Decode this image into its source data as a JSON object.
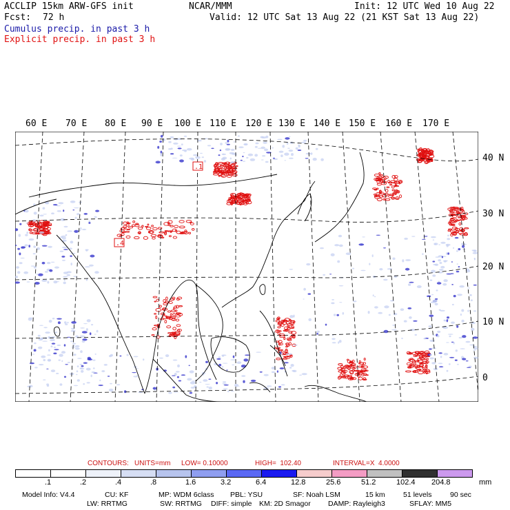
{
  "header": {
    "title": "ACCLIP 15km ARW-GFS init",
    "org": "NCAR/MMM",
    "init": "Init: 12 UTC Wed 10 Aug 22",
    "fcst_label": "Fcst:",
    "fcst_value": "72 h",
    "valid": "Valid: 12 UTC Sat 13 Aug 22 (21 KST Sat 13 Aug 22)"
  },
  "legend": {
    "cumulus": "Cumulus precip. in past 3 h",
    "explicit": "Explicit precip. in past 3 h"
  },
  "map": {
    "lon_labels": [
      "60 E",
      "70 E",
      "80 E",
      "90 E",
      "100 E",
      "110 E",
      "120 E",
      "130 E",
      "140 E",
      "150 E",
      "160 E",
      "170 E"
    ],
    "lat_labels": [
      "40 N",
      "30 N",
      "20 N",
      "10 N",
      "0"
    ],
    "markers": [
      ".1",
      ".4"
    ],
    "colors": {
      "cumulus": "#2828c8",
      "explicit": "#e01010",
      "coast": "#000000",
      "grid": "#000000"
    }
  },
  "contours": {
    "label": "CONTOURS:",
    "units": "UNITS=mm",
    "low": "LOW= 0.10000",
    "high": "HIGH=  102.40",
    "interval": "INTERVAL=X  4.0000"
  },
  "colorbar": {
    "colors": [
      "#ffffff",
      "#ffffff",
      "#eef2fa",
      "#d6def4",
      "#b7c4ee",
      "#8f9ef0",
      "#5a68f4",
      "#1a1af0",
      "#f6cccc",
      "#f49cc4",
      "#c0c0c0",
      "#303030",
      "#cc99ee"
    ],
    "labels": [
      ".1",
      ".2",
      ".4",
      ".8",
      "1.6",
      "3.2",
      "6.4",
      "12.8",
      "25.6",
      "51.2",
      "102.4",
      "204.8"
    ],
    "units": "mm"
  },
  "model_info": {
    "line1": [
      "Model Info: V4.4",
      "CU: KF",
      "MP: WDM 6class",
      "PBL: YSU",
      "SF: Noah LSM",
      "15 km",
      "51 levels",
      "90 sec"
    ],
    "line2": [
      "LW: RRTMG",
      "SW: RRTMG",
      "DIFF: simple",
      "KM: 2D Smagor",
      "DAMP: Rayleigh3",
      "SFLAY: MM5"
    ]
  }
}
